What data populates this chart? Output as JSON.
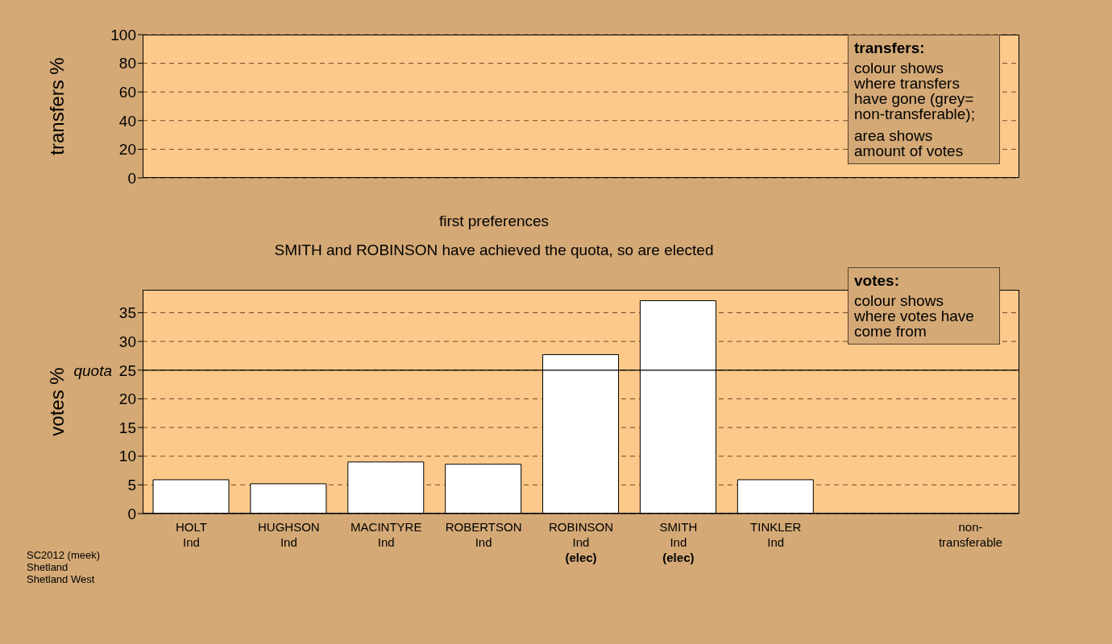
{
  "chart_data": [
    {
      "type": "bar",
      "ylabel": "transfers %",
      "categories": [
        null,
        null,
        null,
        null,
        null,
        null,
        null,
        null,
        null
      ],
      "values": [
        null,
        null,
        null,
        null,
        null,
        null,
        null,
        null,
        null
      ],
      "color": "#ffffff",
      "ylim": [
        0,
        100
      ],
      "yticks": [
        0,
        20,
        40,
        60,
        80,
        100
      ],
      "grid": "y",
      "tick_labels": "y",
      "annotations": [
        "transfers:",
        "colour shows where transfers have gone (grey= non-transferable);",
        "area shows amount of votes"
      ]
    },
    {
      "type": "bar",
      "title": "first preferences",
      "subtitle": "SMITH and ROBINSON have achieved the quota, so are elected",
      "ylabel": "votes %",
      "categories": [
        "HOLT\nInd",
        "HUGHSON\nInd",
        "MACINTYRE\nInd",
        "ROBERTSON\nInd",
        "ROBINSON\nInd\n(elec)",
        "SMITH\nInd\n(elec)",
        "TINKLER\nInd",
        null,
        "non-\ntransferable"
      ],
      "values": [
        5.9,
        5.2,
        9.0,
        8.6,
        27.7,
        37.1,
        5.9,
        null,
        null
      ],
      "color": "#ffffff",
      "ylim": [
        0,
        39
      ],
      "yticks": [
        0,
        5,
        10,
        15,
        20,
        25,
        30,
        35
      ],
      "grid": "y",
      "ref_lines": [
        {
          "axis": "y",
          "value": 25,
          "label": "quota",
          "color": "#000000",
          "line_style": "solid"
        }
      ],
      "annotations": [
        "votes:",
        "colour shows where votes have come from",
        "SC2012 (meek)",
        "Shetland",
        "Shetland West"
      ]
    }
  ]
}
